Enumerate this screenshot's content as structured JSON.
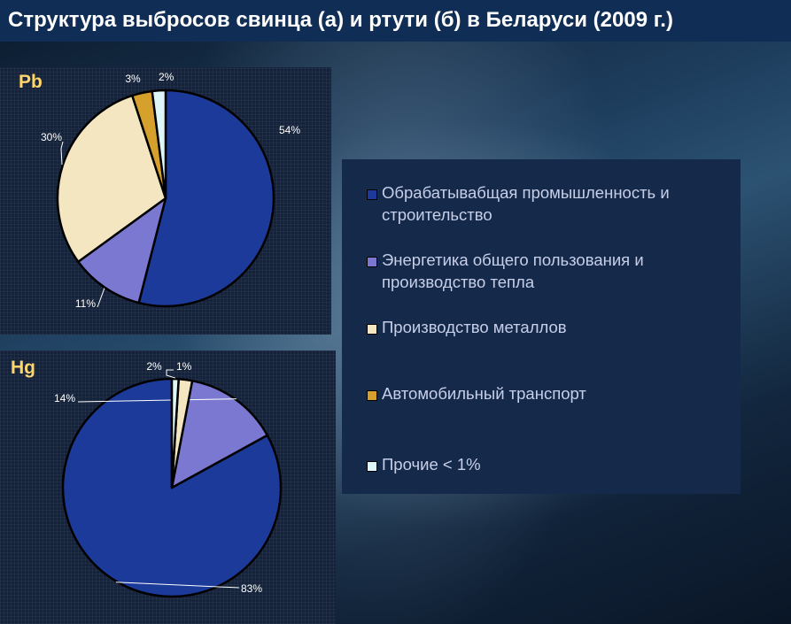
{
  "title": "Структура выбросов свинца (а) и ртути (б) в Беларуси (2009 г.)",
  "colors": {
    "industry": "#1c3a9a",
    "energy": "#7a78d0",
    "metals": "#f5e6c2",
    "transport": "#d6a02c",
    "other": "#dff6f8"
  },
  "legend": [
    {
      "label": "Обрабатывабщая промышленность и строительство",
      "color": "#1c3a9a"
    },
    {
      "label": "Энергетика общего пользования и производство тепла",
      "color": "#7a78d0"
    },
    {
      "label": "Производство металлов",
      "color": "#f5e6c2"
    },
    {
      "label": "Автомобильный транспорт",
      "color": "#d6a02c"
    },
    {
      "label": "Прочие < 1%",
      "color": "#dff6f8"
    }
  ],
  "chart_data": [
    {
      "type": "pie",
      "title": "Pb",
      "categories": [
        "Обрабатывабщая промышленность и строительство",
        "Энергетика общего пользования и производство тепла",
        "Производство металлов",
        "Автомобильный транспорт",
        "Прочие < 1%"
      ],
      "values": [
        54,
        11,
        30,
        3,
        2
      ],
      "data_labels": [
        "54%",
        "11%",
        "30%",
        "3%",
        "2%"
      ],
      "colors": [
        "#1c3a9a",
        "#7a78d0",
        "#f5e6c2",
        "#d6a02c",
        "#dff6f8"
      ]
    },
    {
      "type": "pie",
      "title": "Hg",
      "categories": [
        "Обрабатывабщая промышленность и строительство",
        "Энергетика общего пользования и производство тепла",
        "Производство металлов",
        "Прочие < 1%"
      ],
      "values": [
        83,
        14,
        2,
        1
      ],
      "data_labels": [
        "83%",
        "14%",
        "2%",
        "1%"
      ],
      "colors": [
        "#1c3a9a",
        "#7a78d0",
        "#f5e6c2",
        "#dff6f8"
      ]
    }
  ]
}
